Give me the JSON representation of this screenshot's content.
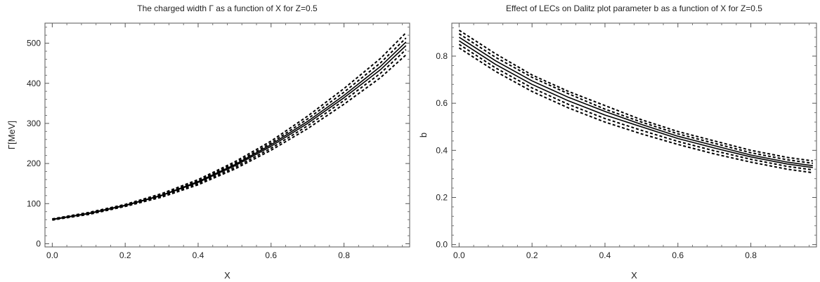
{
  "chart_data": [
    {
      "type": "line",
      "title": "The charged width Γ as a function of X for Z=0.5",
      "xlabel": "X",
      "ylabel": "Γ[MeV]",
      "xlim": [
        -0.02,
        0.98
      ],
      "ylim": [
        -8,
        550
      ],
      "xticks": [
        "0.0",
        "0.2",
        "0.4",
        "0.6",
        "0.8"
      ],
      "yticks": [
        "0",
        "100",
        "200",
        "300",
        "400",
        "500"
      ],
      "grid": false,
      "legend": "none",
      "x": [
        0.0,
        0.1,
        0.2,
        0.3,
        0.4,
        0.5,
        0.6,
        0.7,
        0.8,
        0.9,
        0.97
      ],
      "series": [
        {
          "style": "dashed",
          "values": [
            62,
            78,
            98,
            125,
            160,
            204,
            256,
            318,
            387,
            462,
            526
          ]
        },
        {
          "style": "dashed",
          "values": [
            61,
            77,
            97,
            123,
            157,
            200,
            251,
            311,
            378,
            451,
            513
          ]
        },
        {
          "style": "solid",
          "values": [
            61,
            76,
            96,
            121,
            155,
            197,
            247,
            305,
            370,
            442,
            503
          ]
        },
        {
          "style": "solid",
          "values": [
            60,
            75,
            95,
            120,
            153,
            194,
            243,
            300,
            364,
            434,
            494
          ]
        },
        {
          "style": "dashed",
          "values": [
            60,
            74,
            94,
            118,
            150,
            190,
            238,
            294,
            357,
            425,
            484
          ]
        },
        {
          "style": "dashed",
          "values": [
            59,
            73,
            93,
            116,
            147,
            186,
            233,
            287,
            348,
            414,
            471
          ]
        }
      ]
    },
    {
      "type": "line",
      "title": "Effect of LECs on Dalitz plot parameter b as a function of X for Z=0.5",
      "xlabel": "X",
      "ylabel": "b",
      "xlim": [
        -0.02,
        0.98
      ],
      "ylim": [
        -0.01,
        0.94
      ],
      "xticks": [
        "0.0",
        "0.2",
        "0.4",
        "0.6",
        "0.8"
      ],
      "yticks": [
        "0.0",
        "0.2",
        "0.4",
        "0.6",
        "0.8"
      ],
      "grid": false,
      "legend": "none",
      "x": [
        0.0,
        0.1,
        0.2,
        0.3,
        0.4,
        0.5,
        0.6,
        0.7,
        0.8,
        0.9,
        0.97
      ],
      "series": [
        {
          "style": "dashed",
          "values": [
            0.91,
            0.81,
            0.72,
            0.65,
            0.59,
            0.53,
            0.48,
            0.44,
            0.4,
            0.37,
            0.355
          ]
        },
        {
          "style": "dashed",
          "values": [
            0.895,
            0.795,
            0.71,
            0.64,
            0.575,
            0.52,
            0.47,
            0.43,
            0.39,
            0.36,
            0.345
          ]
        },
        {
          "style": "solid",
          "values": [
            0.88,
            0.78,
            0.695,
            0.625,
            0.565,
            0.51,
            0.46,
            0.42,
            0.38,
            0.35,
            0.335
          ]
        },
        {
          "style": "solid",
          "values": [
            0.865,
            0.765,
            0.68,
            0.61,
            0.55,
            0.5,
            0.45,
            0.41,
            0.372,
            0.342,
            0.327
          ]
        },
        {
          "style": "dashed",
          "values": [
            0.85,
            0.75,
            0.665,
            0.595,
            0.535,
            0.485,
            0.438,
            0.398,
            0.362,
            0.332,
            0.317
          ]
        },
        {
          "style": "dashed",
          "values": [
            0.835,
            0.735,
            0.65,
            0.58,
            0.52,
            0.47,
            0.425,
            0.385,
            0.35,
            0.32,
            0.305
          ]
        }
      ]
    }
  ]
}
